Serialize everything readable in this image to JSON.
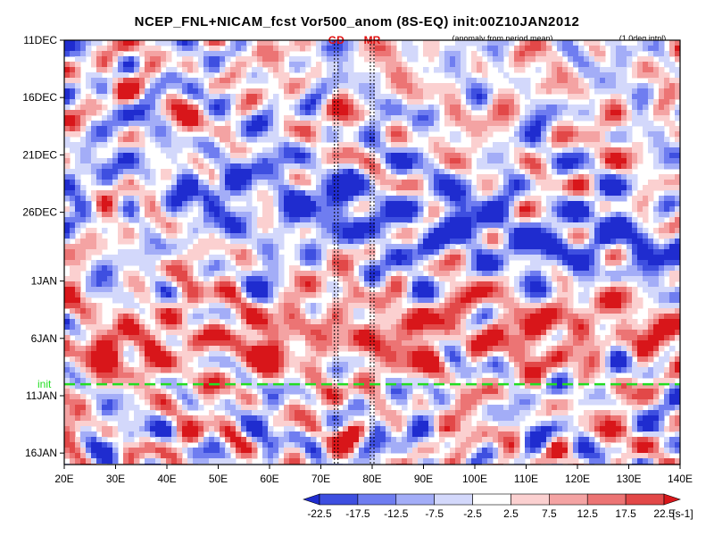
{
  "chart_data": {
    "type": "heatmap",
    "title": "NCEP_FNL+NICAM_fcst Vor500_anom (8S-EQ) init:00Z10JAN2012",
    "subtitle_left": "(anomaly from period mean)",
    "subtitle_right": "(1.0deg intpl)",
    "x_ticks": [
      "20E",
      "30E",
      "40E",
      "50E",
      "60E",
      "70E",
      "80E",
      "90E",
      "100E",
      "110E",
      "120E",
      "130E",
      "140E"
    ],
    "x_values": [
      20,
      30,
      40,
      50,
      60,
      70,
      80,
      90,
      100,
      110,
      120,
      130,
      140
    ],
    "xlim": [
      20,
      140
    ],
    "y_ticks": [
      "11DEC",
      "16DEC",
      "21DEC",
      "26DEC",
      "1JAN",
      "6JAN",
      "11JAN",
      "16JAN"
    ],
    "y_values": [
      "2011-12-11",
      "2011-12-16",
      "2011-12-21",
      "2011-12-26",
      "2012-01-01",
      "2012-01-06",
      "2012-01-11",
      "2012-01-16"
    ],
    "ylim": [
      "2011-12-11",
      "2012-01-17"
    ],
    "init_label": "init",
    "init_date": "2012-01-10",
    "markers": [
      {
        "label": "GD",
        "lon": 73
      },
      {
        "label": "MR",
        "lon": 80
      }
    ],
    "colorbar": {
      "labels": [
        "-22.5",
        "-17.5",
        "-12.5",
        "-7.5",
        "-2.5",
        "2.5",
        "7.5",
        "12.5",
        "17.5",
        "22.5"
      ],
      "unit": "[s-1]",
      "colors": [
        "#1f2ccf",
        "#3e4fe0",
        "#6f7df0",
        "#a3adf7",
        "#d3d8fb",
        "#ffffff",
        "#fbd0d0",
        "#f4a3a3",
        "#ec7474",
        "#e24848",
        "#d8161a"
      ]
    },
    "colors": {
      "positive": "#ec7474",
      "negative": "#6f7df0",
      "init_line": "#22dd22"
    }
  }
}
